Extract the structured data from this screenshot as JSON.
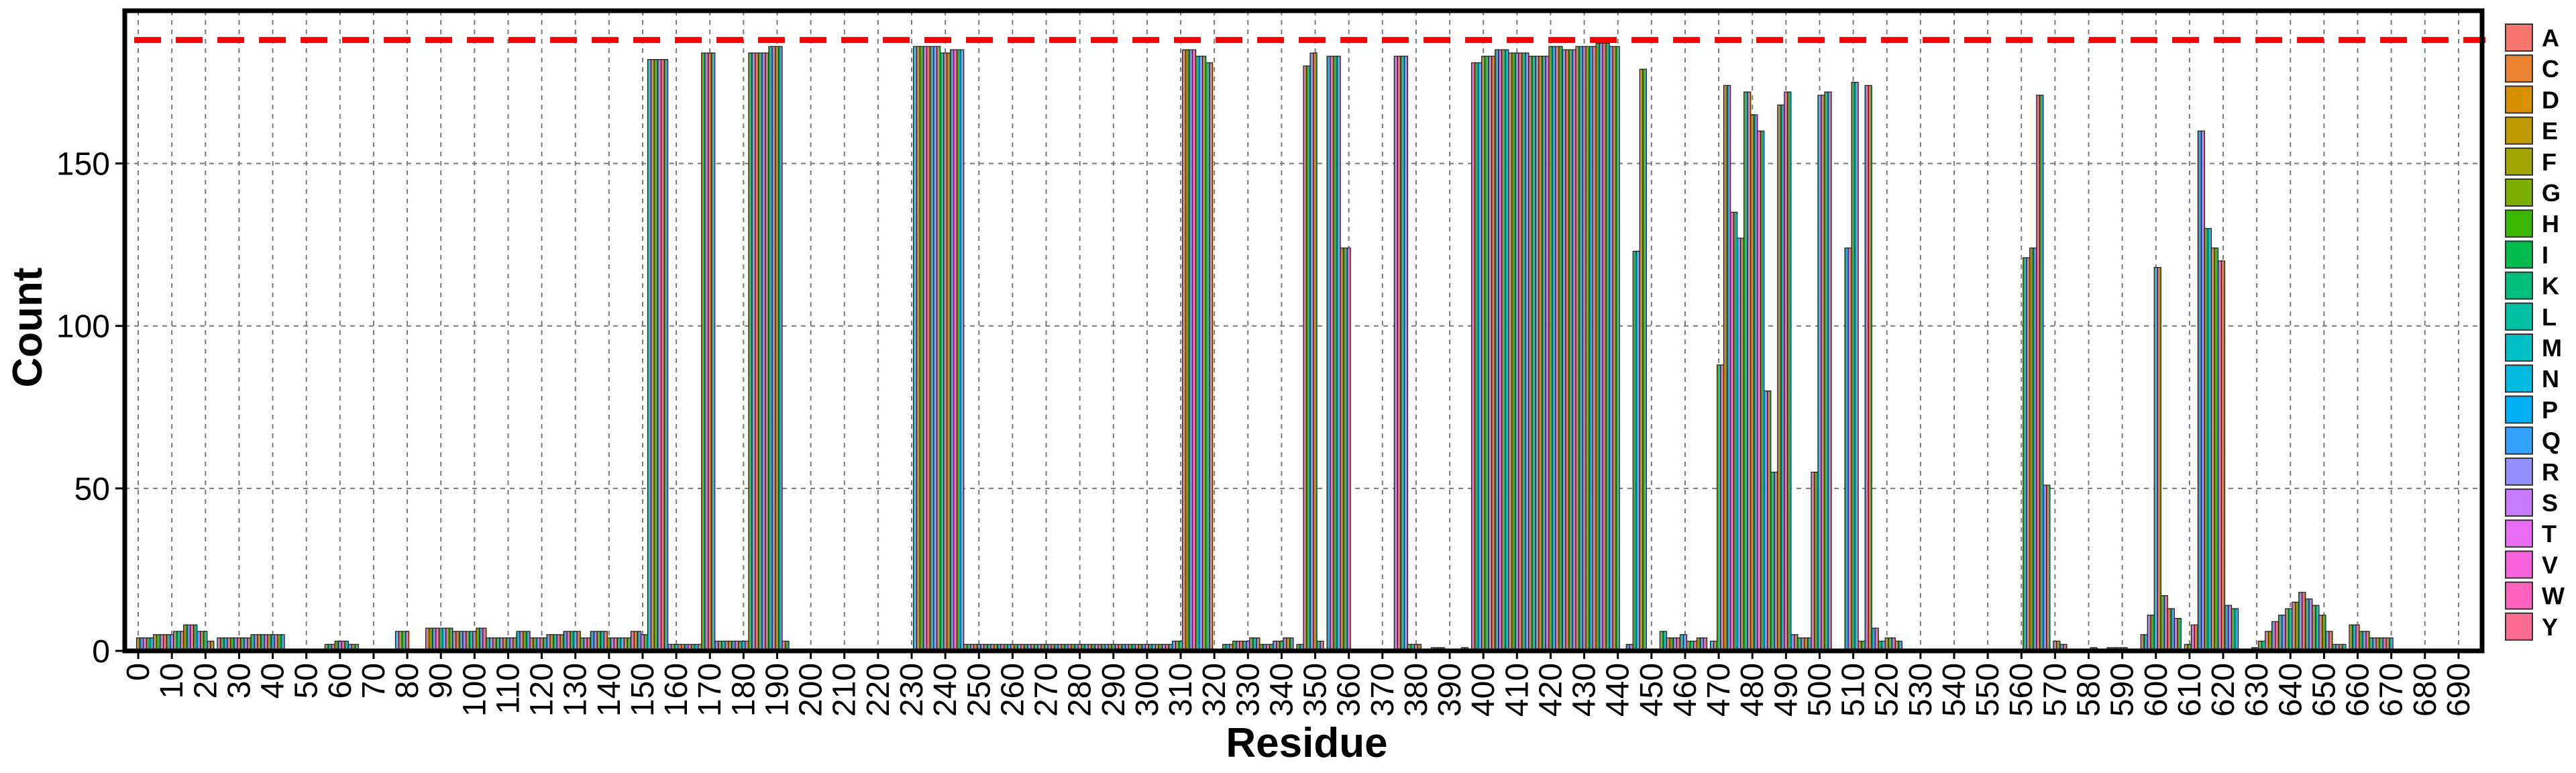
{
  "chart_data": {
    "type": "bar",
    "xlabel": "Residue",
    "ylabel": "Count",
    "xlim": [
      -4,
      697
    ],
    "ylim": [
      0,
      197
    ],
    "grid": true,
    "reference_line": {
      "y": 188,
      "color": "#ff0000",
      "style": "dashed"
    },
    "x_ticks": [
      0,
      10,
      20,
      30,
      40,
      50,
      60,
      70,
      80,
      90,
      100,
      110,
      120,
      130,
      140,
      150,
      160,
      170,
      180,
      190,
      200,
      210,
      220,
      230,
      240,
      250,
      260,
      270,
      280,
      290,
      300,
      310,
      320,
      330,
      340,
      350,
      360,
      370,
      380,
      390,
      400,
      410,
      420,
      430,
      440,
      450,
      460,
      470,
      480,
      490,
      500,
      510,
      520,
      530,
      540,
      550,
      560,
      570,
      580,
      590,
      600,
      610,
      620,
      630,
      640,
      650,
      660,
      670,
      680,
      690
    ],
    "y_ticks": [
      0,
      50,
      100,
      150
    ],
    "legend_position": "right",
    "legend": [
      {
        "label": "A",
        "color": "#f8766d"
      },
      {
        "label": "C",
        "color": "#ea8331"
      },
      {
        "label": "D",
        "color": "#d89000"
      },
      {
        "label": "E",
        "color": "#c09b00"
      },
      {
        "label": "F",
        "color": "#a3a500"
      },
      {
        "label": "G",
        "color": "#7cae00"
      },
      {
        "label": "H",
        "color": "#39b600"
      },
      {
        "label": "I",
        "color": "#00bb4e"
      },
      {
        "label": "K",
        "color": "#00bf7d"
      },
      {
        "label": "L",
        "color": "#00c1a3"
      },
      {
        "label": "M",
        "color": "#00bfc4"
      },
      {
        "label": "N",
        "color": "#00bae0"
      },
      {
        "label": "P",
        "color": "#00b0f6"
      },
      {
        "label": "Q",
        "color": "#35a2ff"
      },
      {
        "label": "R",
        "color": "#9590ff"
      },
      {
        "label": "S",
        "color": "#c77cff"
      },
      {
        "label": "T",
        "color": "#e76bf3"
      },
      {
        "label": "V",
        "color": "#fa62db"
      },
      {
        "label": "W",
        "color": "#ff62bc"
      },
      {
        "label": "Y",
        "color": "#ff6c91"
      }
    ],
    "segments": [
      {
        "x0": 0,
        "x1": 4,
        "y": 4
      },
      {
        "x0": 5,
        "x1": 10,
        "y": 5
      },
      {
        "x0": 11,
        "x1": 13,
        "y": 6
      },
      {
        "x0": 14,
        "x1": 17,
        "y": 8
      },
      {
        "x0": 18,
        "x1": 20,
        "y": 6
      },
      {
        "x0": 21,
        "x1": 22,
        "y": 3
      },
      {
        "x0": 24,
        "x1": 33,
        "y": 4
      },
      {
        "x0": 34,
        "x1": 43,
        "y": 5
      },
      {
        "x0": 56,
        "x1": 58,
        "y": 2
      },
      {
        "x0": 59,
        "x1": 62,
        "y": 3
      },
      {
        "x0": 63,
        "x1": 65,
        "y": 2
      },
      {
        "x0": 77,
        "x1": 80,
        "y": 6
      },
      {
        "x0": 86,
        "x1": 93,
        "y": 7
      },
      {
        "x0": 94,
        "x1": 100,
        "y": 6
      },
      {
        "x0": 101,
        "x1": 103,
        "y": 7
      },
      {
        "x0": 104,
        "x1": 112,
        "y": 4
      },
      {
        "x0": 113,
        "x1": 116,
        "y": 6
      },
      {
        "x0": 117,
        "x1": 121,
        "y": 4
      },
      {
        "x0": 122,
        "x1": 126,
        "y": 5
      },
      {
        "x0": 127,
        "x1": 131,
        "y": 6
      },
      {
        "x0": 132,
        "x1": 134,
        "y": 4
      },
      {
        "x0": 135,
        "x1": 139,
        "y": 6
      },
      {
        "x0": 140,
        "x1": 146,
        "y": 4
      },
      {
        "x0": 147,
        "x1": 149,
        "y": 6
      },
      {
        "x0": 150,
        "x1": 151,
        "y": 5
      },
      {
        "x0": 152,
        "x1": 157,
        "y": 182
      },
      {
        "x0": 158,
        "x1": 167,
        "y": 2
      },
      {
        "x0": 168,
        "x1": 171,
        "y": 184
      },
      {
        "x0": 172,
        "x1": 181,
        "y": 3
      },
      {
        "x0": 182,
        "x1": 187,
        "y": 184
      },
      {
        "x0": 188,
        "x1": 191,
        "y": 186
      },
      {
        "x0": 192,
        "x1": 193,
        "y": 3
      },
      {
        "x0": 231,
        "x1": 238,
        "y": 186
      },
      {
        "x0": 239,
        "x1": 241,
        "y": 184
      },
      {
        "x0": 242,
        "x1": 245,
        "y": 185
      },
      {
        "x0": 246,
        "x1": 307,
        "y": 2
      },
      {
        "x0": 308,
        "x1": 310,
        "y": 3
      },
      {
        "x0": 311,
        "x1": 314,
        "y": 185
      },
      {
        "x0": 315,
        "x1": 317,
        "y": 183
      },
      {
        "x0": 318,
        "x1": 319,
        "y": 181
      },
      {
        "x0": 323,
        "x1": 325,
        "y": 2
      },
      {
        "x0": 326,
        "x1": 330,
        "y": 3
      },
      {
        "x0": 331,
        "x1": 333,
        "y": 4
      },
      {
        "x0": 334,
        "x1": 337,
        "y": 2
      },
      {
        "x0": 338,
        "x1": 340,
        "y": 3
      },
      {
        "x0": 341,
        "x1": 343,
        "y": 4
      },
      {
        "x0": 345,
        "x1": 346,
        "y": 2
      },
      {
        "x0": 347,
        "x1": 348,
        "y": 180
      },
      {
        "x0": 349,
        "x1": 350,
        "y": 184
      },
      {
        "x0": 351,
        "x1": 352,
        "y": 3
      },
      {
        "x0": 354,
        "x1": 357,
        "y": 183
      },
      {
        "x0": 358,
        "x1": 360,
        "y": 124
      },
      {
        "x0": 374,
        "x1": 377,
        "y": 183
      },
      {
        "x0": 378,
        "x1": 381,
        "y": 2
      },
      {
        "x0": 385,
        "x1": 388,
        "y": 1
      },
      {
        "x0": 394,
        "x1": 395,
        "y": 1
      },
      {
        "x0": 397,
        "x1": 399,
        "y": 181
      },
      {
        "x0": 400,
        "x1": 403,
        "y": 183
      },
      {
        "x0": 404,
        "x1": 407,
        "y": 185
      },
      {
        "x0": 408,
        "x1": 413,
        "y": 184
      },
      {
        "x0": 414,
        "x1": 419,
        "y": 183
      },
      {
        "x0": 420,
        "x1": 423,
        "y": 186
      },
      {
        "x0": 424,
        "x1": 427,
        "y": 185
      },
      {
        "x0": 428,
        "x1": 433,
        "y": 186
      },
      {
        "x0": 434,
        "x1": 437,
        "y": 187
      },
      {
        "x0": 438,
        "x1": 440,
        "y": 186
      },
      {
        "x0": 443,
        "x1": 444,
        "y": 2
      },
      {
        "x0": 445,
        "x1": 446,
        "y": 123
      },
      {
        "x0": 447,
        "x1": 448,
        "y": 179
      },
      {
        "x0": 453,
        "x1": 454,
        "y": 6
      },
      {
        "x0": 455,
        "x1": 458,
        "y": 4
      },
      {
        "x0": 459,
        "x1": 460,
        "y": 5
      },
      {
        "x0": 461,
        "x1": 463,
        "y": 3
      },
      {
        "x0": 464,
        "x1": 466,
        "y": 4
      },
      {
        "x0": 468,
        "x1": 469,
        "y": 3
      },
      {
        "x0": 470,
        "x1": 471,
        "y": 88
      },
      {
        "x0": 472,
        "x1": 473,
        "y": 174
      },
      {
        "x0": 474,
        "x1": 475,
        "y": 135
      },
      {
        "x0": 476,
        "x1": 477,
        "y": 127
      },
      {
        "x0": 478,
        "x1": 479,
        "y": 172
      },
      {
        "x0": 480,
        "x1": 481,
        "y": 165
      },
      {
        "x0": 482,
        "x1": 483,
        "y": 160
      },
      {
        "x0": 484,
        "x1": 485,
        "y": 80
      },
      {
        "x0": 486,
        "x1": 487,
        "y": 55
      },
      {
        "x0": 488,
        "x1": 489,
        "y": 168
      },
      {
        "x0": 490,
        "x1": 491,
        "y": 172
      },
      {
        "x0": 492,
        "x1": 493,
        "y": 5
      },
      {
        "x0": 494,
        "x1": 497,
        "y": 4
      },
      {
        "x0": 498,
        "x1": 499,
        "y": 55
      },
      {
        "x0": 500,
        "x1": 501,
        "y": 171
      },
      {
        "x0": 502,
        "x1": 503,
        "y": 172
      },
      {
        "x0": 508,
        "x1": 509,
        "y": 124
      },
      {
        "x0": 510,
        "x1": 511,
        "y": 175
      },
      {
        "x0": 512,
        "x1": 513,
        "y": 3
      },
      {
        "x0": 514,
        "x1": 515,
        "y": 174
      },
      {
        "x0": 516,
        "x1": 517,
        "y": 7
      },
      {
        "x0": 518,
        "x1": 519,
        "y": 3
      },
      {
        "x0": 520,
        "x1": 522,
        "y": 4
      },
      {
        "x0": 523,
        "x1": 524,
        "y": 3
      },
      {
        "x0": 561,
        "x1": 562,
        "y": 121
      },
      {
        "x0": 563,
        "x1": 564,
        "y": 124
      },
      {
        "x0": 565,
        "x1": 566,
        "y": 171
      },
      {
        "x0": 567,
        "x1": 568,
        "y": 51
      },
      {
        "x0": 570,
        "x1": 571,
        "y": 3
      },
      {
        "x0": 572,
        "x1": 573,
        "y": 2
      },
      {
        "x0": 581,
        "x1": 582,
        "y": 1
      },
      {
        "x0": 586,
        "x1": 591,
        "y": 1
      },
      {
        "x0": 596,
        "x1": 597,
        "y": 5
      },
      {
        "x0": 598,
        "x1": 599,
        "y": 11
      },
      {
        "x0": 600,
        "x1": 601,
        "y": 118
      },
      {
        "x0": 602,
        "x1": 603,
        "y": 17
      },
      {
        "x0": 604,
        "x1": 605,
        "y": 13
      },
      {
        "x0": 606,
        "x1": 607,
        "y": 10
      },
      {
        "x0": 609,
        "x1": 610,
        "y": 2
      },
      {
        "x0": 611,
        "x1": 612,
        "y": 8
      },
      {
        "x0": 613,
        "x1": 614,
        "y": 160
      },
      {
        "x0": 615,
        "x1": 616,
        "y": 130
      },
      {
        "x0": 617,
        "x1": 618,
        "y": 124
      },
      {
        "x0": 619,
        "x1": 620,
        "y": 120
      },
      {
        "x0": 621,
        "x1": 622,
        "y": 14
      },
      {
        "x0": 623,
        "x1": 624,
        "y": 13
      },
      {
        "x0": 629,
        "x1": 630,
        "y": 1
      },
      {
        "x0": 631,
        "x1": 632,
        "y": 3
      },
      {
        "x0": 633,
        "x1": 634,
        "y": 6
      },
      {
        "x0": 635,
        "x1": 636,
        "y": 9
      },
      {
        "x0": 637,
        "x1": 638,
        "y": 11
      },
      {
        "x0": 639,
        "x1": 640,
        "y": 13
      },
      {
        "x0": 641,
        "x1": 642,
        "y": 15
      },
      {
        "x0": 643,
        "x1": 644,
        "y": 18
      },
      {
        "x0": 645,
        "x1": 646,
        "y": 16
      },
      {
        "x0": 647,
        "x1": 648,
        "y": 14
      },
      {
        "x0": 649,
        "x1": 650,
        "y": 11
      },
      {
        "x0": 651,
        "x1": 652,
        "y": 6
      },
      {
        "x0": 653,
        "x1": 656,
        "y": 2
      },
      {
        "x0": 658,
        "x1": 660,
        "y": 8
      },
      {
        "x0": 661,
        "x1": 663,
        "y": 6
      },
      {
        "x0": 664,
        "x1": 670,
        "y": 4
      }
    ]
  }
}
